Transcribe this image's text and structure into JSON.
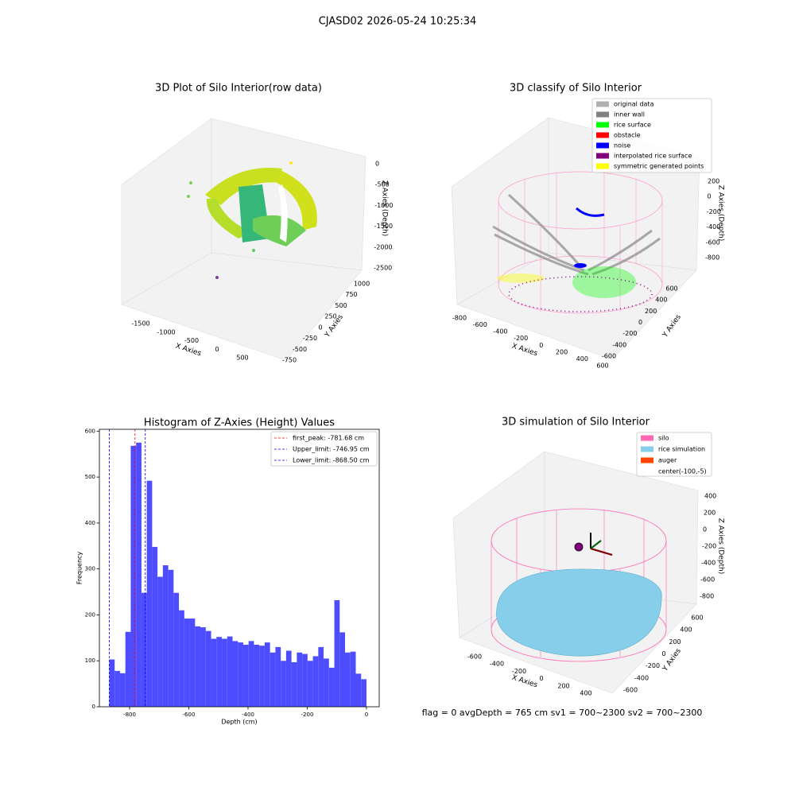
{
  "title": "CJASD02 2026-05-24 10:25:34",
  "footer": "flag = 0     avgDepth = 765 cm  sv1 = 700~2300  sv2 = 700~2300",
  "chart_data": [
    {
      "type": "scatter3d",
      "title": "3D Plot of Silo Interior(row data)",
      "xlabel": "X Axies",
      "ylabel": "Y Axies",
      "zlabel": "Z Axies (Depth)",
      "xticks": [
        -1500,
        -1000,
        -500,
        0,
        500
      ],
      "yticks": [
        1000,
        750,
        500,
        250,
        0,
        -250,
        -500,
        -750
      ],
      "zticks": [
        0,
        -500,
        -1000,
        -1500,
        -2000,
        -2500
      ]
    },
    {
      "type": "scatter3d",
      "title": "3D classify of Silo Interior",
      "xlabel": "X Axies",
      "ylabel": "Y Axies",
      "zlabel": "Z Axies (Depth)",
      "xticks": [
        -800,
        -600,
        -400,
        -200,
        0,
        200,
        400,
        600
      ],
      "yticks": [
        600,
        400,
        200,
        0,
        -200,
        -400,
        -600
      ],
      "zticks": [
        200,
        0,
        -200,
        -400,
        -600,
        -800
      ],
      "legend": [
        {
          "name": "original data",
          "color": "#b0b0b0"
        },
        {
          "name": "inner wall",
          "color": "#808080"
        },
        {
          "name": "rice surface",
          "color": "#00ff00"
        },
        {
          "name": "obstacle",
          "color": "#ff0000"
        },
        {
          "name": "noise",
          "color": "#0000ff"
        },
        {
          "name": "interpolated rice surface",
          "color": "#800080"
        },
        {
          "name": "symmetric generated points",
          "color": "#ffff00"
        }
      ]
    },
    {
      "type": "histogram",
      "title": "Histogram of Z-Axies (Height) Values",
      "xlabel": "Depth (cm)",
      "ylabel": "Frequency",
      "color": "#4d4dff",
      "bins": [
        -868.5,
        -850.4,
        -832.3,
        -814.2,
        -796.1,
        -778.0,
        -759.9,
        -741.8,
        -723.8,
        -705.7,
        -687.6,
        -669.5,
        -651.4,
        -633.3,
        -615.2,
        -597.1,
        -579.0,
        -560.9,
        -542.8,
        -524.7,
        -506.6,
        -488.5,
        -470.4,
        -452.3,
        -434.3,
        -416.2,
        -398.1,
        -380.0,
        -361.9,
        -343.8,
        -325.7,
        -307.6,
        -289.5,
        -271.4,
        -253.3,
        -235.2,
        -217.1,
        -199.0,
        -180.9,
        -162.8,
        -144.8,
        -126.7,
        -108.6,
        -90.5,
        -72.4,
        -54.3,
        -36.2,
        -18.1,
        0
      ],
      "counts": [
        103,
        78,
        73,
        163,
        568,
        575,
        248,
        492,
        348,
        283,
        308,
        298,
        248,
        210,
        192,
        192,
        175,
        173,
        165,
        148,
        152,
        148,
        153,
        143,
        140,
        135,
        143,
        135,
        133,
        140,
        118,
        130,
        100,
        122,
        97,
        118,
        115,
        100,
        110,
        130,
        105,
        85,
        232,
        162,
        118,
        120,
        72,
        60
      ],
      "xlim": [
        -902,
        43
      ],
      "ylim": [
        0,
        604
      ],
      "xticks": [
        -800,
        -600,
        -400,
        -200,
        0
      ],
      "yticks": [
        0,
        100,
        200,
        300,
        400,
        500,
        600
      ],
      "lines": [
        {
          "name": "first_peak: -781.68 cm",
          "value": -781.68,
          "color": "#ff0000"
        },
        {
          "name": "Upper_limit: -746.95 cm",
          "value": -746.95,
          "color": "#0000ff"
        },
        {
          "name": "Lower_limit: -868.50 cm",
          "value": -868.5,
          "color": "#0000ff"
        }
      ]
    },
    {
      "type": "surface3d",
      "title": "3D simulation of Silo Interior",
      "xlabel": "X Axies",
      "ylabel": "Y Axies",
      "zlabel": "Z Axies (Depth)",
      "xticks": [
        -600,
        -400,
        -200,
        0,
        200,
        400
      ],
      "yticks": [
        600,
        400,
        200,
        0,
        -200,
        -400,
        -600
      ],
      "zticks": [
        400,
        200,
        0,
        -200,
        -400,
        -600,
        -800
      ],
      "legend": [
        {
          "name": "silo",
          "color": "#ff69b4"
        },
        {
          "name": "rice simulation",
          "color": "#87ceeb"
        },
        {
          "name": "auger",
          "color": "#ff4500"
        },
        {
          "name": "center(-100,-5)"
        }
      ]
    }
  ]
}
